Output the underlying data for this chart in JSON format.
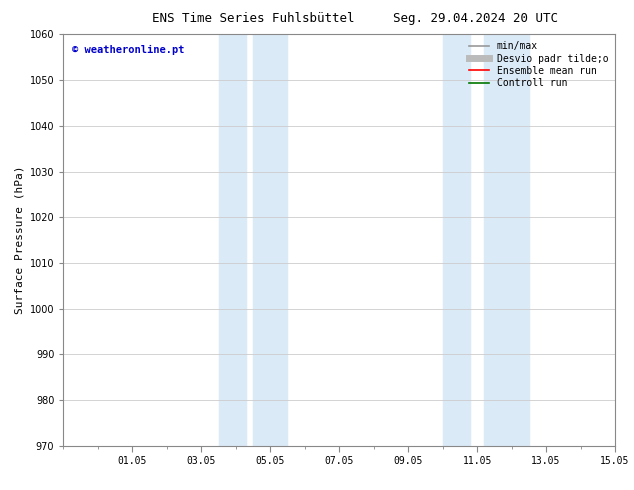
{
  "title_left": "ENS Time Series Fuhlsbüttel",
  "title_right": "Seg. 29.04.2024 20 UTC",
  "ylabel": "Surface Pressure (hPa)",
  "ylim": [
    970,
    1060
  ],
  "yticks": [
    970,
    980,
    990,
    1000,
    1010,
    1020,
    1030,
    1040,
    1050,
    1060
  ],
  "xtick_labels": [
    "01.05",
    "03.05",
    "05.05",
    "07.05",
    "09.05",
    "11.05",
    "13.05",
    "15.05"
  ],
  "xtick_positions": [
    2,
    4,
    6,
    8,
    10,
    12,
    14,
    16
  ],
  "xlim": [
    0,
    16
  ],
  "shaded_regions": [
    {
      "x_start": 4.5,
      "x_end": 5.3
    },
    {
      "x_start": 5.5,
      "x_end": 6.5
    },
    {
      "x_start": 11.0,
      "x_end": 11.8
    },
    {
      "x_start": 12.2,
      "x_end": 13.5
    }
  ],
  "shaded_color": "#daeaf7",
  "watermark_text": "© weatheronline.pt",
  "watermark_color": "#0000cc",
  "legend_entries": [
    {
      "label": "min/max",
      "color": "#999999",
      "lw": 1.2,
      "style": "solid"
    },
    {
      "label": "Desvio padr tilde;o",
      "color": "#bbbbbb",
      "lw": 5,
      "style": "solid"
    },
    {
      "label": "Ensemble mean run",
      "color": "#ff0000",
      "lw": 1.2,
      "style": "solid"
    },
    {
      "label": "Controll run",
      "color": "#007700",
      "lw": 1.2,
      "style": "solid"
    }
  ],
  "background_color": "#ffffff",
  "grid_color": "#cccccc",
  "title_fontsize": 9,
  "tick_fontsize": 7,
  "ylabel_fontsize": 8,
  "legend_fontsize": 7
}
